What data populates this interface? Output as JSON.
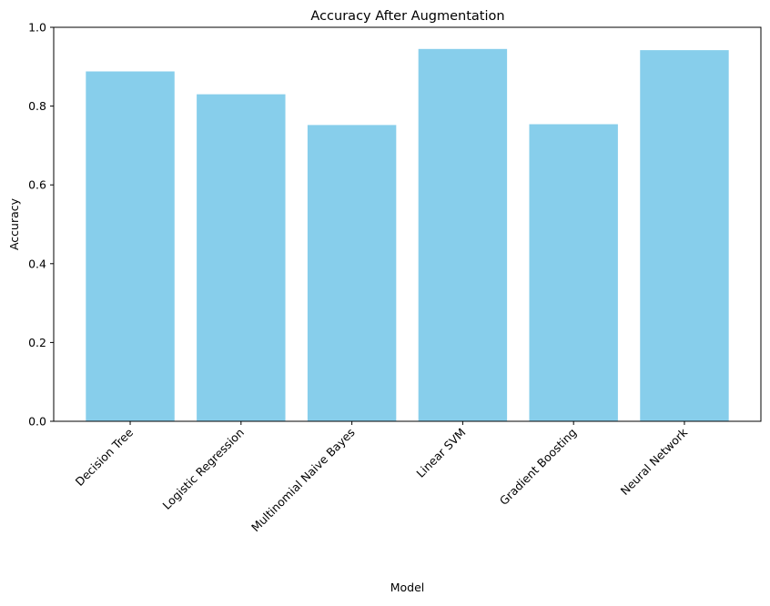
{
  "chart_data": {
    "type": "bar",
    "title": "Accuracy After Augmentation",
    "xlabel": "Model",
    "ylabel": "Accuracy",
    "categories": [
      "Decision Tree",
      "Logistic Regression",
      "Multinomial Naive Bayes",
      "Linear SVM",
      "Gradient Boosting",
      "Neural Network"
    ],
    "values": [
      0.888,
      0.83,
      0.752,
      0.945,
      0.754,
      0.942
    ],
    "ylim": [
      0,
      1.0
    ],
    "yticks": [
      "0.0",
      "0.2",
      "0.4",
      "0.6",
      "0.8",
      "1.0"
    ],
    "ytick_values": [
      0,
      0.2,
      0.4,
      0.6,
      0.8,
      1.0
    ],
    "xtick_rotation_deg": 45,
    "grid": false,
    "bar_color": "#87ceeb",
    "axis_color": "#000000"
  }
}
